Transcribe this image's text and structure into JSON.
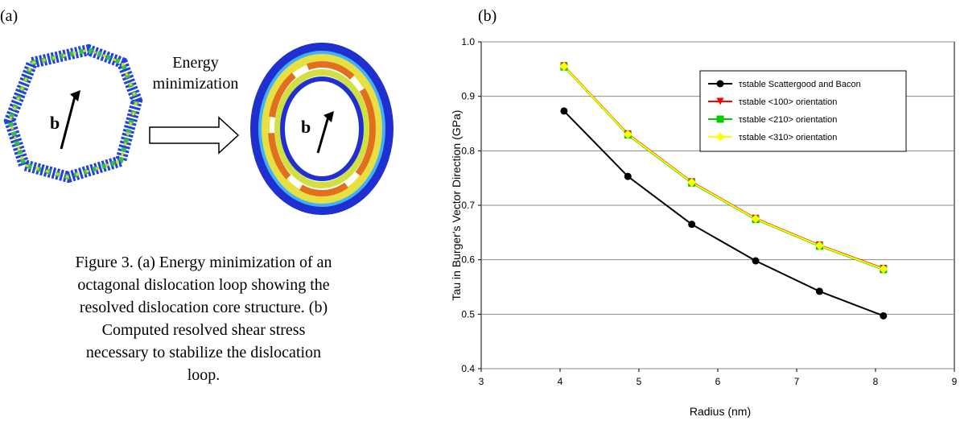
{
  "panel_a": {
    "label": "(a)",
    "vector_left": "b",
    "vector_right": "b",
    "arrow_text": [
      "Energy",
      "minimization"
    ]
  },
  "panel_b": {
    "label": "(b)"
  },
  "caption": [
    "Figure 3. (a) Energy minimization of an",
    "octagonal dislocation loop showing the",
    "resolved dislocation core structure. (b)",
    "Computed resolved shear stress",
    "necessary to stabilize the dislocation",
    "loop."
  ],
  "chart_data": {
    "type": "line",
    "x_label": "Radius (nm)",
    "y_label": "Tau in Burger's Vector Direction (GPa)",
    "x": [
      4.05,
      4.86,
      5.67,
      6.48,
      7.29,
      8.1
    ],
    "series": [
      {
        "name": "τstable Scattergood and Bacon",
        "color": "#000000",
        "marker": "circle",
        "values": [
          0.873,
          0.753,
          0.665,
          0.598,
          0.542,
          0.497
        ]
      },
      {
        "name": "τstable <100> orientation",
        "color": "#ff0000",
        "marker": "triangle-down",
        "values": [
          0.956,
          0.831,
          0.743,
          0.676,
          0.627,
          0.584
        ]
      },
      {
        "name": "τstable <210> orientation",
        "color": "#00cc00",
        "marker": "square",
        "values": [
          0.954,
          0.829,
          0.741,
          0.674,
          0.625,
          0.582
        ]
      },
      {
        "name": "τstable <310> orientation",
        "color": "#ffff00",
        "marker": "diamond",
        "values": [
          0.955,
          0.83,
          0.742,
          0.675,
          0.626,
          0.583
        ]
      }
    ],
    "xlim": [
      3,
      9
    ],
    "xticks": [
      3,
      4,
      5,
      6,
      7,
      8,
      9
    ],
    "ylim": [
      0.4,
      1.0
    ],
    "yticks": [
      0.4,
      0.5,
      0.6,
      0.7,
      0.8,
      0.9,
      {
        "value": 1.0,
        "label": "1.0"
      }
    ],
    "grid": true,
    "legend": "upper right"
  }
}
